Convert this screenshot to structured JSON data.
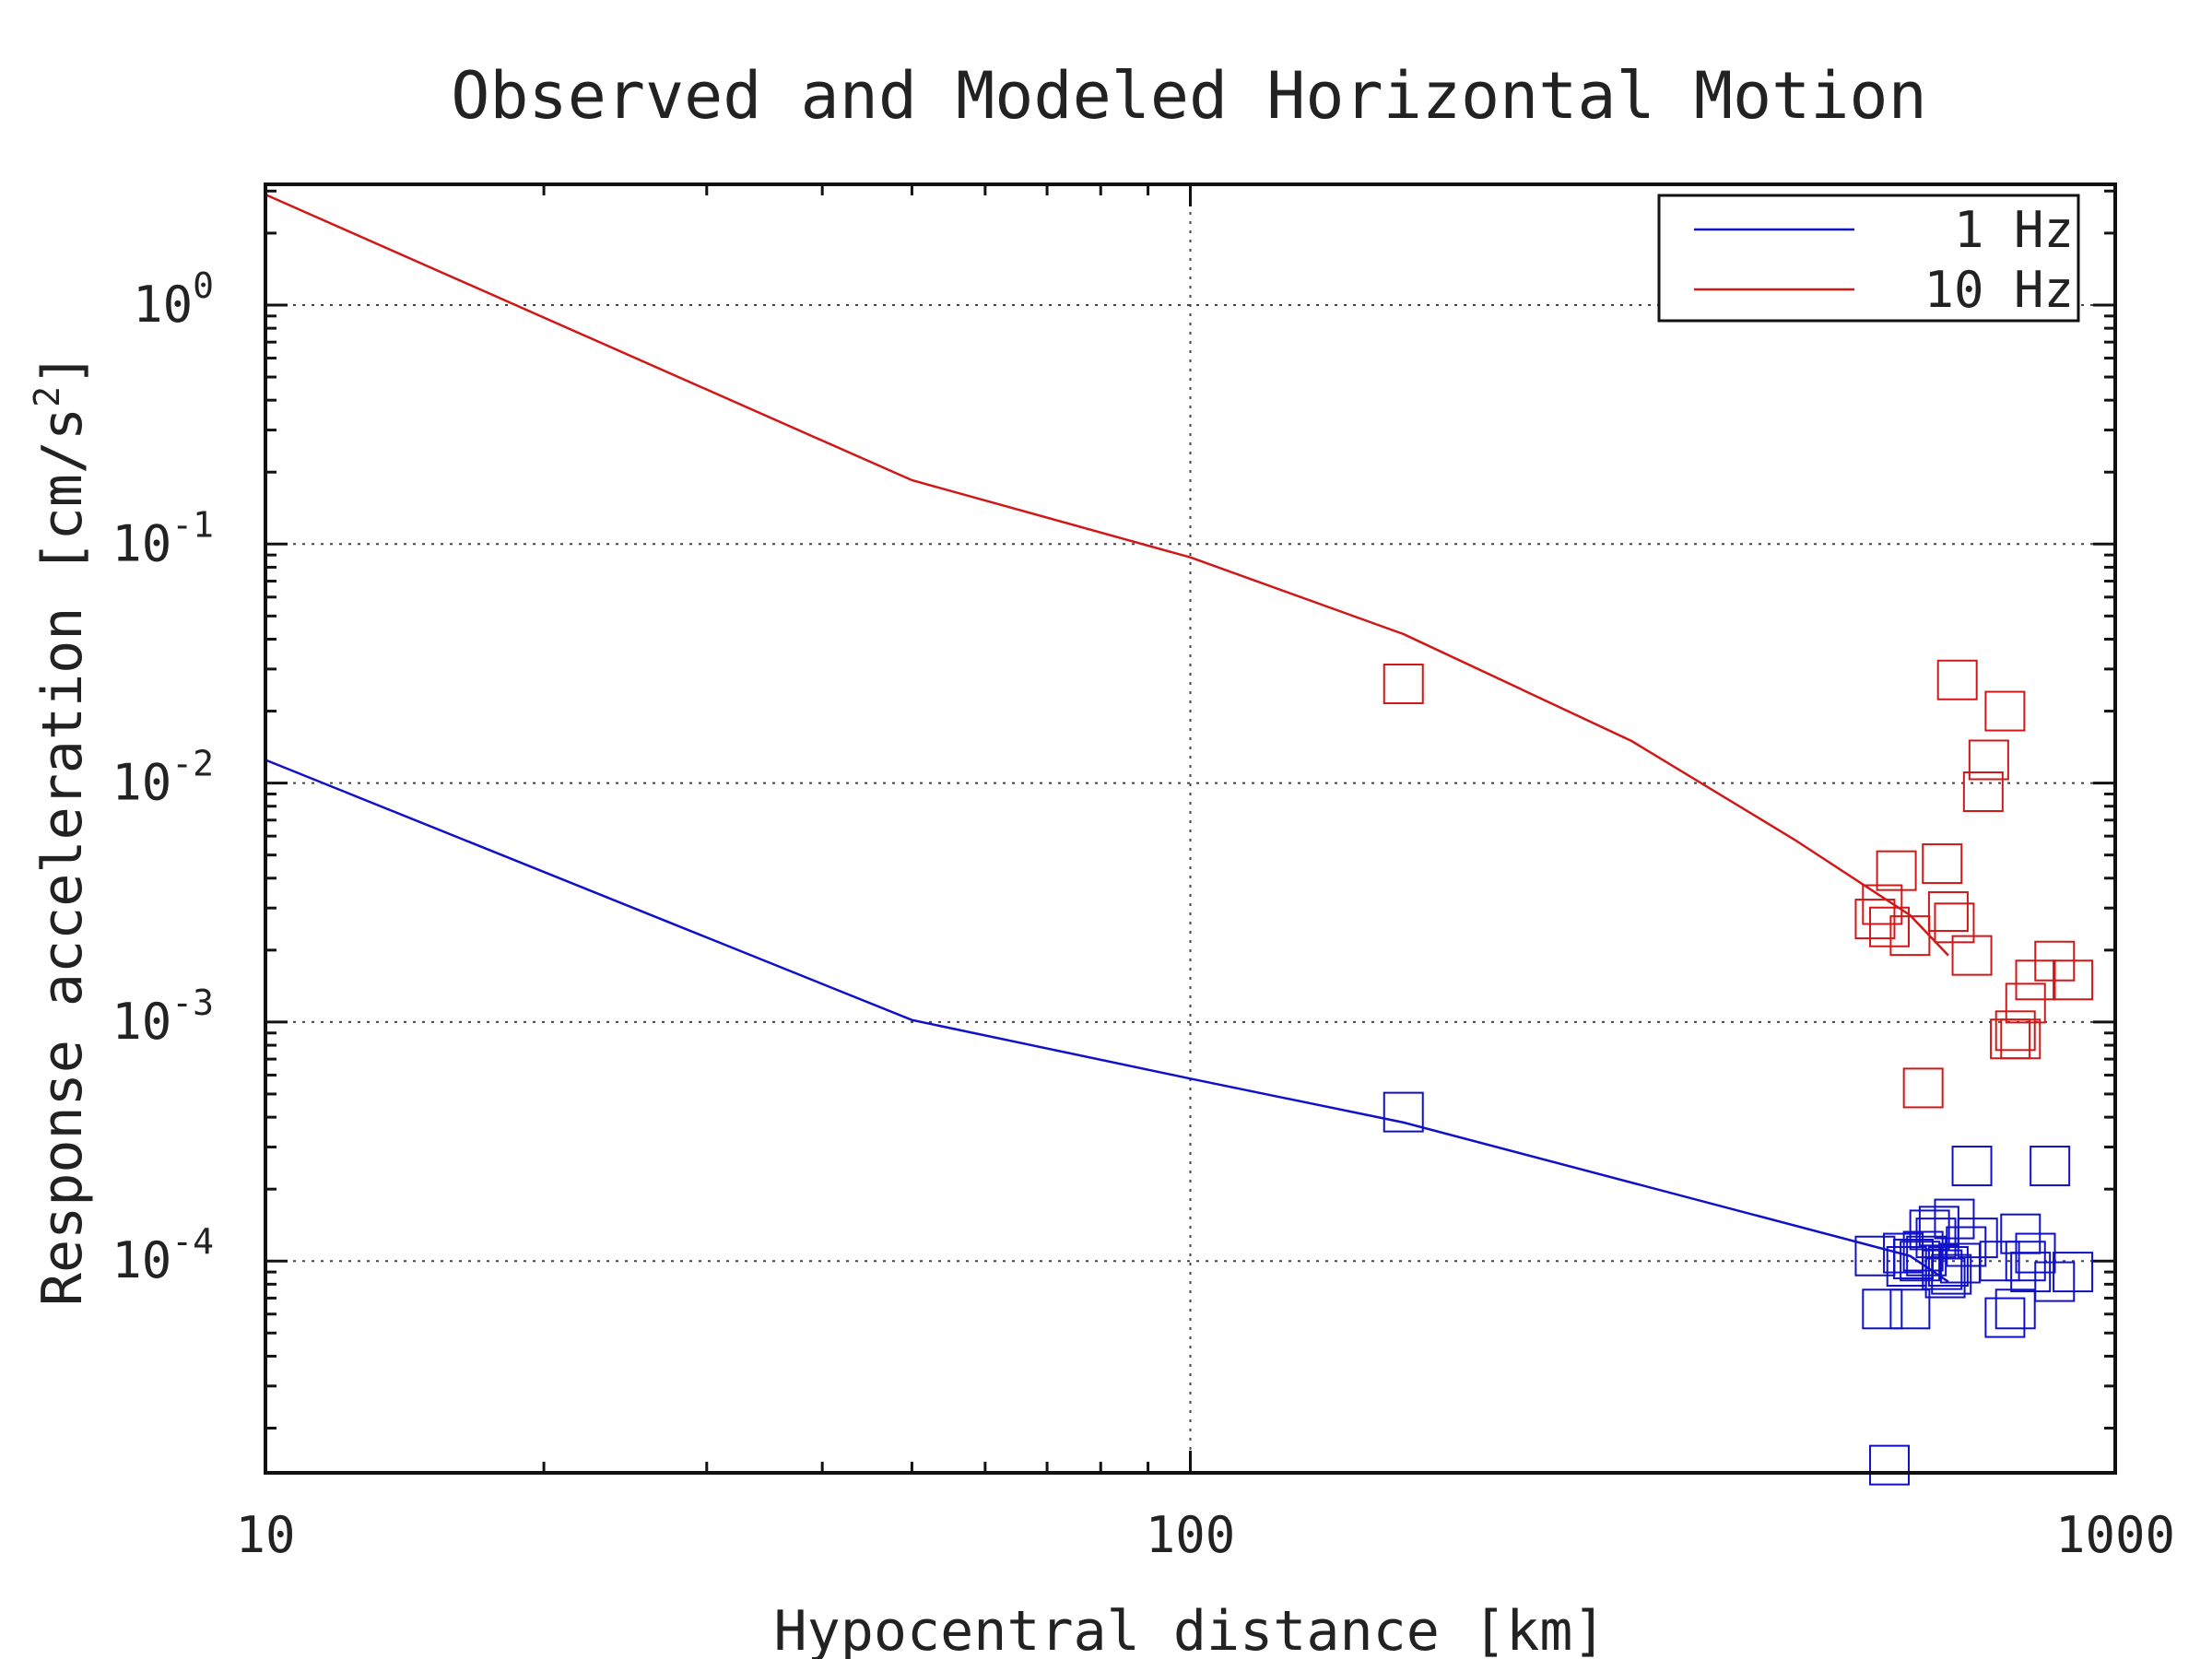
{
  "chart_data": {
    "type": "scatter",
    "title": "Observed and Modeled Horizontal Motion",
    "xlabel": "Hypocentral distance [km]",
    "ylabel_base": "Response acceleration [cm/s",
    "ylabel_sup": "2",
    "ylabel_end": "]",
    "xscale": "log",
    "yscale": "log",
    "xlim": [
      10,
      1000
    ],
    "ylim": [
      1.3e-05,
      3.2
    ],
    "grid": true,
    "legend_position": "top-right",
    "x_ticks": [
      {
        "value": 10,
        "label": "10"
      },
      {
        "value": 100,
        "label": "100"
      },
      {
        "value": 1000,
        "label": "1000"
      }
    ],
    "y_ticks": [
      {
        "value": 1,
        "base": "10",
        "exp": "0"
      },
      {
        "value": 0.1,
        "base": "10",
        "exp": "-1"
      },
      {
        "value": 0.01,
        "base": "10",
        "exp": "-2"
      },
      {
        "value": 0.001,
        "base": "10",
        "exp": "-3"
      },
      {
        "value": 0.0001,
        "base": "10",
        "exp": "-4"
      }
    ],
    "series": [
      {
        "name": "1 Hz",
        "color": "#1010c8",
        "model_line": {
          "x": [
            10,
            50,
            100,
            170,
            600,
            660
          ],
          "y": [
            0.0125,
            0.00102,
            0.00058,
            0.00038,
            0.000105,
            8.2e-05
          ]
        },
        "observed": {
          "x": [
            170,
            590,
            595,
            600,
            605,
            615,
            620,
            625,
            640,
            645,
            650,
            655,
            660,
            665,
            670,
            680,
            690,
            700,
            710,
            750,
            760,
            780,
            790,
            800,
            810,
            820,
            850,
            860,
            900,
            550,
            560,
            570,
            630
          ],
          "y": [
            0.00042,
            0.000108,
            9.5e-05,
            6.3e-05,
            0.000102,
            0.0001,
            0.00011,
            0.000105,
            0.000125,
            0.00014,
            9.2e-05,
            8.5e-05,
            9.5e-05,
            8.8e-05,
            0.00015,
            9.8e-05,
            0.000115,
            0.00025,
            0.000125,
            0.0001,
            5.8e-05,
            6.3e-05,
            0.00013,
            0.0001,
            9e-05,
            0.000108,
            0.00025,
            8.2e-05,
            9e-05,
            0.000105,
            6.3e-05,
            1.4e-05,
            0.000135
          ],
          "points_count_note": ""
        }
      },
      {
        "name": "10 Hz",
        "color": "#d01818",
        "model_line": {
          "x": [
            10,
            50,
            100,
            170,
            300,
            450,
            600,
            660
          ],
          "y": [
            2.9,
            0.185,
            0.088,
            0.042,
            0.015,
            0.0058,
            0.0028,
            0.0019
          ]
        },
        "observed": {
          "x": [
            170,
            550,
            560,
            570,
            580,
            600,
            620,
            650,
            660,
            670,
            675,
            700,
            720,
            730,
            760,
            770,
            780,
            790,
            800,
            820,
            860,
            900
          ],
          "y": [
            0.026,
            0.0027,
            0.0031,
            0.0025,
            0.0043,
            0.0023,
            0.00053,
            0.0046,
            0.0029,
            0.0026,
            0.027,
            0.0019,
            0.0092,
            0.0125,
            0.02,
            0.00085,
            0.00092,
            0.00085,
            0.0012,
            0.0015,
            0.0018,
            0.0015
          ]
        }
      }
    ]
  }
}
